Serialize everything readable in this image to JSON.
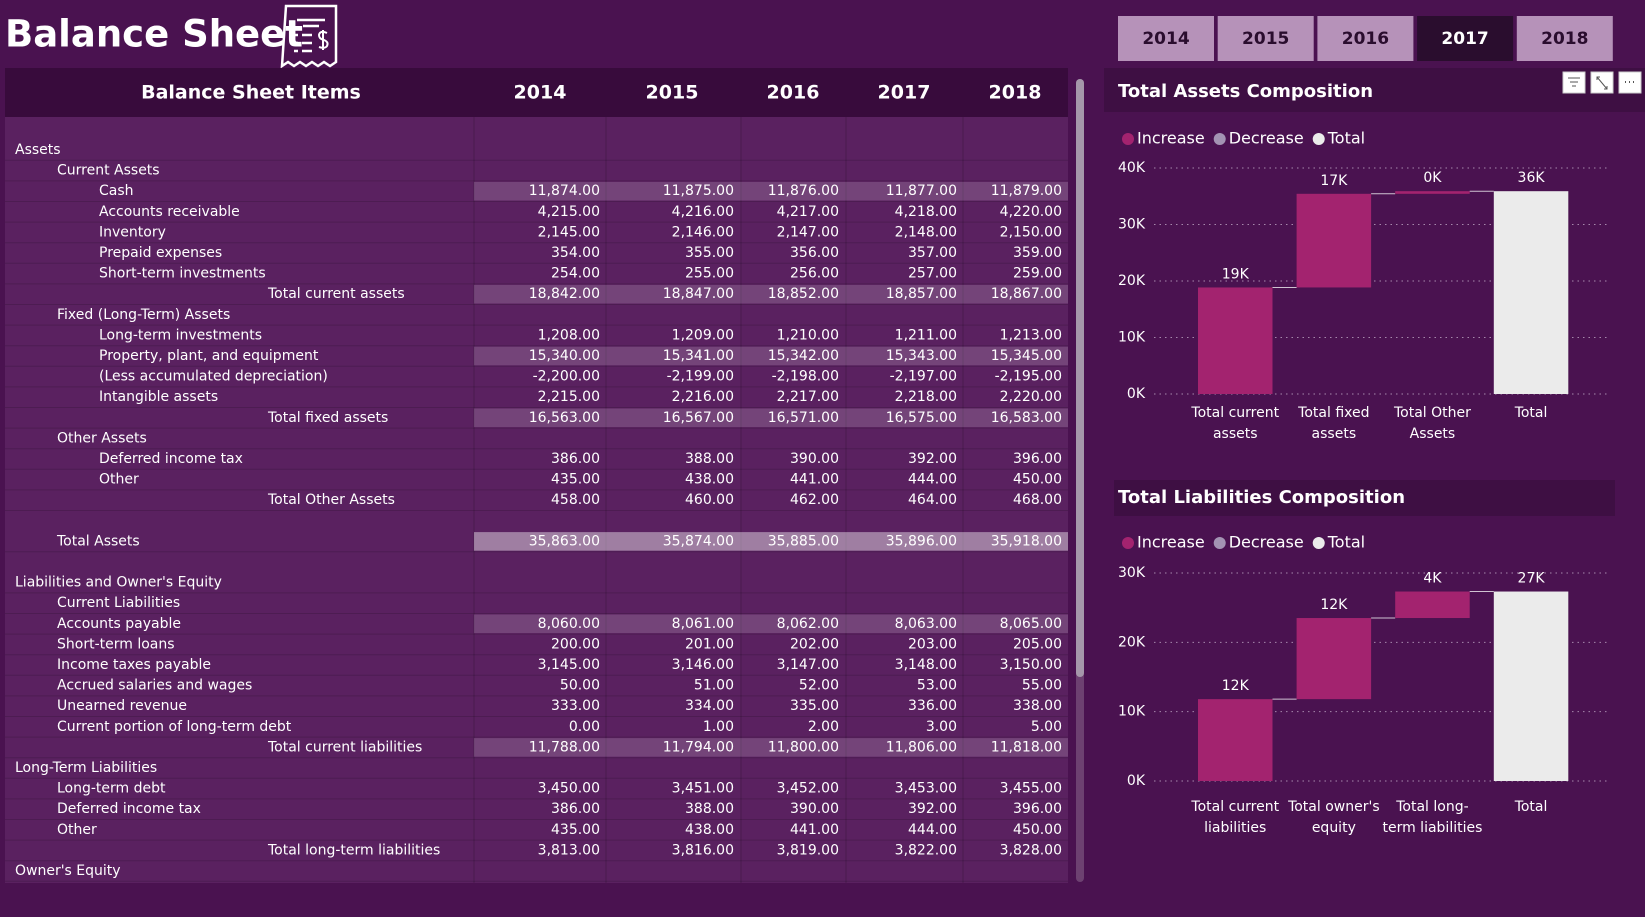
{
  "header": {
    "title": "Balance Sheet"
  },
  "slicer": {
    "options": [
      "2014",
      "2015",
      "2016",
      "2017",
      "2018"
    ],
    "selected": "2017"
  },
  "table": {
    "header": [
      "Balance Sheet Items",
      "2014",
      "2015",
      "2016",
      "2017",
      "2018"
    ],
    "sections": [
      {
        "rows": [
          {
            "label": "Assets",
            "level": 0
          },
          {
            "label": "Current Assets",
            "level": 1
          },
          {
            "label": "Cash",
            "level": 2,
            "highlight": 1,
            "values": [
              "11,874.00",
              "11,875.00",
              "11,876.00",
              "11,877.00",
              "11,879.00"
            ]
          },
          {
            "label": "Accounts receivable",
            "level": 2,
            "values": [
              "4,215.00",
              "4,216.00",
              "4,217.00",
              "4,218.00",
              "4,220.00"
            ]
          },
          {
            "label": "Inventory",
            "level": 2,
            "values": [
              "2,145.00",
              "2,146.00",
              "2,147.00",
              "2,148.00",
              "2,150.00"
            ]
          },
          {
            "label": "Prepaid expenses",
            "level": 2,
            "values": [
              "354.00",
              "355.00",
              "356.00",
              "357.00",
              "359.00"
            ]
          },
          {
            "label": "Short-term investments",
            "level": 2,
            "values": [
              "254.00",
              "255.00",
              "256.00",
              "257.00",
              "259.00"
            ]
          },
          {
            "label": "Total current assets",
            "total": true,
            "highlight": 1,
            "values": [
              "18,842.00",
              "18,847.00",
              "18,852.00",
              "18,857.00",
              "18,867.00"
            ]
          },
          {
            "label": "Fixed (Long-Term) Assets",
            "level": 1
          },
          {
            "label": "Long-term investments",
            "level": 2,
            "values": [
              "1,208.00",
              "1,209.00",
              "1,210.00",
              "1,211.00",
              "1,213.00"
            ]
          },
          {
            "label": "Property, plant, and equipment",
            "level": 2,
            "highlight": 1,
            "values": [
              "15,340.00",
              "15,341.00",
              "15,342.00",
              "15,343.00",
              "15,345.00"
            ]
          },
          {
            "label": "(Less accumulated depreciation)",
            "level": 2,
            "values": [
              "-2,200.00",
              "-2,199.00",
              "-2,198.00",
              "-2,197.00",
              "-2,195.00"
            ]
          },
          {
            "label": "Intangible assets",
            "level": 2,
            "values": [
              "2,215.00",
              "2,216.00",
              "2,217.00",
              "2,218.00",
              "2,220.00"
            ]
          },
          {
            "label": "Total fixed assets",
            "total": true,
            "highlight": 1,
            "values": [
              "16,563.00",
              "16,567.00",
              "16,571.00",
              "16,575.00",
              "16,583.00"
            ]
          },
          {
            "label": "Other Assets",
            "level": 1
          },
          {
            "label": "Deferred income tax",
            "level": 2,
            "values": [
              "386.00",
              "388.00",
              "390.00",
              "392.00",
              "396.00"
            ]
          },
          {
            "label": "Other",
            "level": 2,
            "values": [
              "435.00",
              "438.00",
              "441.00",
              "444.00",
              "450.00"
            ]
          },
          {
            "label": "Total Other Assets",
            "total": true,
            "values": [
              "458.00",
              "460.00",
              "462.00",
              "464.00",
              "468.00"
            ]
          }
        ]
      },
      {
        "rows": [
          {
            "label": "Total Assets",
            "level": 1,
            "highlight": 2,
            "values": [
              "35,863.00",
              "35,874.00",
              "35,885.00",
              "35,896.00",
              "35,918.00"
            ]
          }
        ]
      },
      {
        "rows": [
          {
            "label": "Liabilities and Owner's Equity",
            "level": 0
          },
          {
            "label": "Current Liabilities",
            "level": 1
          },
          {
            "label": "Accounts payable",
            "level": 1,
            "highlight": 1,
            "values": [
              "8,060.00",
              "8,061.00",
              "8,062.00",
              "8,063.00",
              "8,065.00"
            ]
          },
          {
            "label": "Short-term loans",
            "level": 1,
            "values": [
              "200.00",
              "201.00",
              "202.00",
              "203.00",
              "205.00"
            ]
          },
          {
            "label": "Income taxes payable",
            "level": 1,
            "values": [
              "3,145.00",
              "3,146.00",
              "3,147.00",
              "3,148.00",
              "3,150.00"
            ]
          },
          {
            "label": "Accrued salaries and wages",
            "level": 1,
            "values": [
              "50.00",
              "51.00",
              "52.00",
              "53.00",
              "55.00"
            ]
          },
          {
            "label": "Unearned revenue",
            "level": 1,
            "values": [
              "333.00",
              "334.00",
              "335.00",
              "336.00",
              "338.00"
            ]
          },
          {
            "label": "Current portion of long-term debt",
            "level": 1,
            "values": [
              "0.00",
              "1.00",
              "2.00",
              "3.00",
              "5.00"
            ]
          },
          {
            "label": "Total current liabilities",
            "total": true,
            "highlight": 1,
            "values": [
              "11,788.00",
              "11,794.00",
              "11,800.00",
              "11,806.00",
              "11,818.00"
            ]
          },
          {
            "label": "Long-Term Liabilities",
            "level": 0
          },
          {
            "label": "Long-term debt",
            "level": 1,
            "values": [
              "3,450.00",
              "3,451.00",
              "3,452.00",
              "3,453.00",
              "3,455.00"
            ]
          },
          {
            "label": "Deferred income tax",
            "level": 1,
            "values": [
              "386.00",
              "388.00",
              "390.00",
              "392.00",
              "396.00"
            ]
          },
          {
            "label": "Other",
            "level": 1,
            "values": [
              "435.00",
              "438.00",
              "441.00",
              "444.00",
              "450.00"
            ]
          },
          {
            "label": "Total long-term liabilities",
            "total": true,
            "values": [
              "3,813.00",
              "3,816.00",
              "3,819.00",
              "3,822.00",
              "3,828.00"
            ]
          },
          {
            "label": "Owner's Equity",
            "level": 0
          }
        ]
      }
    ]
  },
  "chart_data": [
    {
      "type": "waterfall",
      "title": "Total Assets Composition",
      "legend": [
        {
          "name": "Increase",
          "measure": "increase",
          "color": "#a3236f"
        },
        {
          "name": "Decrease",
          "measure": "decrease",
          "color": "#a393b3"
        },
        {
          "name": "Total",
          "measure": "total",
          "color": "#ebebeb"
        }
      ],
      "categories": [
        "Total current assets",
        "Total fixed assets",
        "Total Other Assets",
        "Total"
      ],
      "measures": [
        "increase",
        "increase",
        "increase",
        "total"
      ],
      "values": [
        18857,
        16575,
        464,
        35896
      ],
      "value_labels": [
        "19K",
        "17K",
        "0K",
        "36K"
      ],
      "ylim": [
        0,
        40000
      ],
      "yticks": [
        {
          "value": 0,
          "label": "0K"
        },
        {
          "value": 10000,
          "label": "10K"
        },
        {
          "value": 20000,
          "label": "20K"
        },
        {
          "value": 30000,
          "label": "30K"
        },
        {
          "value": 40000,
          "label": "40K"
        }
      ],
      "grid": true
    },
    {
      "type": "waterfall",
      "title": "Total Liabilities Composition",
      "legend": [
        {
          "name": "Increase",
          "measure": "increase",
          "color": "#a3236f"
        },
        {
          "name": "Decrease",
          "measure": "decrease",
          "color": "#a393b3"
        },
        {
          "name": "Total",
          "measure": "total",
          "color": "#ebebeb"
        }
      ],
      "categories": [
        "Total current liabilities",
        "Total owner's equity",
        "Total long-term liabilities",
        "Total"
      ],
      "measures": [
        "increase",
        "increase",
        "increase",
        "total"
      ],
      "values": [
        11806,
        11700,
        3822,
        27328
      ],
      "value_labels": [
        "12K",
        "12K",
        "4K",
        "27K"
      ],
      "ylim": [
        0,
        30000
      ],
      "yticks": [
        {
          "value": 0,
          "label": "0K"
        },
        {
          "value": 10000,
          "label": "10K"
        },
        {
          "value": 20000,
          "label": "20K"
        },
        {
          "value": 30000,
          "label": "30K"
        }
      ],
      "grid": true
    }
  ]
}
